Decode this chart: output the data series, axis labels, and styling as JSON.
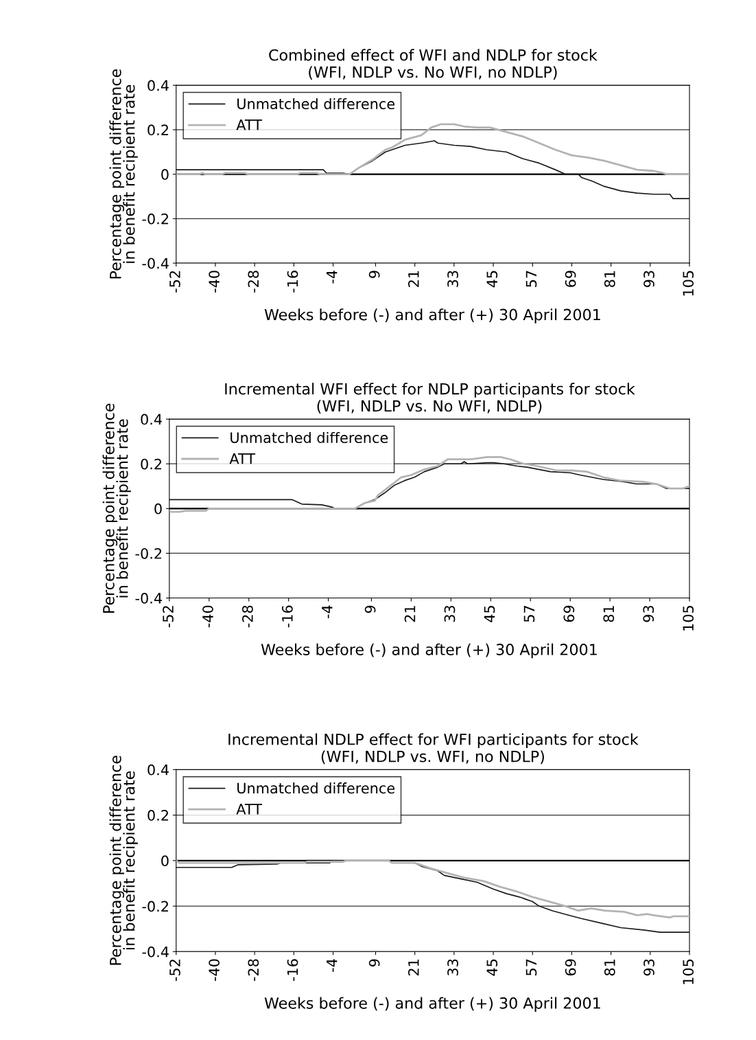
{
  "chart_data": [
    {
      "type": "line",
      "title": "Combined effect of WFI and NDLP for stock\n(WFI, NDLP vs. No WFI, no NDLP)",
      "xlabel": "Weeks before (-) and after (+) 30 April 2001",
      "ylabel": "Percentage point difference\nin benefit recipient rate",
      "xlim": [
        -52,
        105
      ],
      "xticks": [
        -52,
        -40,
        -28,
        -16,
        -4,
        9,
        21,
        33,
        45,
        57,
        69,
        81,
        93,
        105
      ],
      "ylim": [
        -0.4,
        0.4
      ],
      "yticks": [
        -0.4,
        -0.2,
        0,
        0.2,
        0.4
      ],
      "grid": "y",
      "legend": "top left",
      "ref_lines": [
        {
          "axis": "y",
          "value": 0,
          "color": "#000000"
        }
      ],
      "series": [
        {
          "name": "Unmatched difference",
          "color": "#1a1a1a",
          "x": [
            -52,
            -7,
            -6,
            -1,
            1,
            4,
            8,
            12,
            14,
            18,
            23,
            27,
            28,
            33,
            38,
            43,
            49,
            54,
            59,
            64,
            67,
            71,
            72,
            75,
            79,
            84,
            89,
            94,
            99,
            100,
            105
          ],
          "values": [
            0.02,
            0.02,
            0.005,
            0.005,
            0,
            0.03,
            0.06,
            0.1,
            0.11,
            0.13,
            0.14,
            0.15,
            0.14,
            0.13,
            0.125,
            0.11,
            0.1,
            0.07,
            0.05,
            0.02,
            0,
            0,
            -0.015,
            -0.03,
            -0.055,
            -0.075,
            -0.085,
            -0.09,
            -0.09,
            -0.11,
            -0.11
          ]
        },
        {
          "name": "ATT",
          "color": "#b3b3b3",
          "x": [
            -52,
            -45,
            -44,
            -43,
            -38,
            -37,
            -31,
            -30,
            -15,
            -14,
            -9,
            -8,
            1,
            4,
            8,
            12,
            14,
            18,
            23,
            26,
            29,
            33,
            36,
            40,
            44,
            49,
            54,
            59,
            64,
            69,
            74,
            79,
            84,
            89,
            94,
            97,
            98,
            105
          ],
          "values": [
            0,
            0,
            0.005,
            0,
            0,
            0.005,
            0.005,
            0,
            0,
            0.005,
            0.005,
            0,
            0,
            0.03,
            0.065,
            0.11,
            0.12,
            0.155,
            0.175,
            0.21,
            0.225,
            0.225,
            0.215,
            0.21,
            0.21,
            0.19,
            0.17,
            0.14,
            0.11,
            0.085,
            0.075,
            0.06,
            0.04,
            0.02,
            0.015,
            0.005,
            0,
            0
          ]
        }
      ]
    },
    {
      "type": "line",
      "title": "Incremental WFI effect for NDLP participants for stock\n(WFI, NDLP vs. No WFI, NDLP)",
      "xlabel": "Weeks before (-) and after (+) 30 April 2001",
      "ylabel": "Percentage point difference\nin benefit recipient rate",
      "xlim": [
        -52,
        105
      ],
      "xticks": [
        -52,
        -40,
        -28,
        -16,
        -4,
        9,
        21,
        33,
        45,
        57,
        69,
        81,
        93,
        105
      ],
      "ylim": [
        -0.4,
        0.4
      ],
      "yticks": [
        -0.4,
        -0.2,
        0,
        0.2,
        0.4
      ],
      "grid": "y",
      "legend": "top left",
      "ref_lines": [
        {
          "axis": "y",
          "value": 0,
          "color": "#000000"
        }
      ],
      "series": [
        {
          "name": "Unmatched difference",
          "color": "#1a1a1a",
          "x": [
            -52,
            -15,
            -12,
            -6,
            -3,
            -2,
            4,
            7,
            10,
            13,
            16,
            19,
            22,
            25,
            29,
            31,
            36,
            37,
            38,
            44,
            46,
            49,
            53,
            56,
            63,
            69,
            72,
            79,
            85,
            89,
            95,
            98,
            105
          ],
          "values": [
            0.04,
            0.04,
            0.02,
            0.017,
            0.007,
            0,
            0,
            0.025,
            0.04,
            0.07,
            0.105,
            0.125,
            0.14,
            0.165,
            0.185,
            0.2,
            0.2,
            0.21,
            0.2,
            0.205,
            0.205,
            0.2,
            0.19,
            0.185,
            0.165,
            0.16,
            0.15,
            0.13,
            0.12,
            0.11,
            0.11,
            0.09,
            0.09
          ]
        },
        {
          "name": "ATT",
          "color": "#b3b3b3",
          "x": [
            -52,
            -49,
            -47,
            -41,
            -40,
            4,
            7,
            10,
            11,
            15,
            18,
            21,
            25,
            29,
            32,
            39,
            44,
            48,
            51,
            55,
            59,
            65,
            70,
            74,
            79,
            84,
            91,
            95,
            99,
            103,
            105
          ],
          "values": [
            -0.015,
            -0.015,
            -0.01,
            -0.01,
            0,
            0,
            0.025,
            0.035,
            0.06,
            0.105,
            0.14,
            0.15,
            0.175,
            0.19,
            0.22,
            0.22,
            0.23,
            0.23,
            0.22,
            0.2,
            0.19,
            0.17,
            0.17,
            0.165,
            0.14,
            0.125,
            0.12,
            0.11,
            0.09,
            0.09,
            0.1
          ]
        }
      ]
    },
    {
      "type": "line",
      "title": "Incremental NDLP effect for WFI participants for stock\n(WFI, NDLP vs. WFI, no NDLP)",
      "xlabel": "Weeks before (-) and after (+) 30 April 2001",
      "ylabel": "Percentage point difference\nin benefit recipient rate",
      "xlim": [
        -52,
        105
      ],
      "xticks": [
        -52,
        -40,
        -28,
        -16,
        -4,
        9,
        21,
        33,
        45,
        57,
        69,
        81,
        93,
        105
      ],
      "ylim": [
        -0.4,
        0.4
      ],
      "yticks": [
        -0.4,
        -0.2,
        0,
        0.2,
        0.4
      ],
      "grid": "y",
      "legend": "top left",
      "ref_lines": [
        {
          "axis": "y",
          "value": 0,
          "color": "#000000"
        }
      ],
      "series": [
        {
          "name": "Unmatched difference",
          "color": "#1a1a1a",
          "x": [
            -52,
            -35,
            -33,
            -21,
            -20,
            -5,
            -4,
            13,
            14,
            21,
            23,
            28,
            30,
            35,
            40,
            45,
            49,
            53,
            57,
            59,
            63,
            68,
            72,
            78,
            84,
            91,
            96,
            105
          ],
          "values": [
            -0.03,
            -0.03,
            -0.018,
            -0.015,
            -0.01,
            -0.01,
            0,
            0,
            -0.01,
            -0.01,
            -0.025,
            -0.045,
            -0.065,
            -0.08,
            -0.095,
            -0.125,
            -0.145,
            -0.16,
            -0.18,
            -0.2,
            -0.22,
            -0.24,
            -0.255,
            -0.275,
            -0.295,
            -0.305,
            -0.315,
            -0.315
          ]
        },
        {
          "name": "ATT",
          "color": "#b3b3b3",
          "x": [
            -52,
            -51,
            -13,
            -12,
            -1,
            0,
            13,
            14,
            21,
            26,
            31,
            36,
            42,
            47,
            52,
            57,
            62,
            67,
            71,
            75,
            79,
            85,
            89,
            92,
            94,
            99,
            100,
            105
          ],
          "values": [
            0,
            -0.01,
            -0.01,
            -0.005,
            -0.005,
            0,
            0,
            -0.01,
            -0.01,
            -0.035,
            -0.055,
            -0.075,
            -0.09,
            -0.115,
            -0.135,
            -0.16,
            -0.18,
            -0.2,
            -0.22,
            -0.21,
            -0.22,
            -0.225,
            -0.24,
            -0.235,
            -0.24,
            -0.25,
            -0.245,
            -0.245
          ]
        }
      ]
    }
  ]
}
